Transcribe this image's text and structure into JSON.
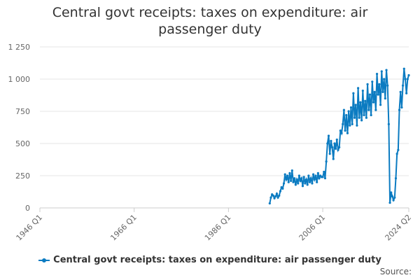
{
  "chart_data": {
    "type": "line",
    "title": "Central govt receipts: taxes on expenditure: air passenger duty",
    "source": "Source:",
    "x": [
      "1994 Q4",
      "1995 Q1",
      "1995 Q2",
      "1995 Q3",
      "1995 Q4",
      "1996 Q1",
      "1996 Q2",
      "1996 Q3",
      "1996 Q4",
      "1997 Q1",
      "1997 Q2",
      "1997 Q3",
      "1997 Q4",
      "1998 Q1",
      "1998 Q2",
      "1998 Q3",
      "1998 Q4",
      "1999 Q1",
      "1999 Q2",
      "1999 Q3",
      "1999 Q4",
      "2000 Q1",
      "2000 Q2",
      "2000 Q3",
      "2000 Q4",
      "2001 Q1",
      "2001 Q2",
      "2001 Q3",
      "2001 Q4",
      "2002 Q1",
      "2002 Q2",
      "2002 Q3",
      "2002 Q4",
      "2003 Q1",
      "2003 Q2",
      "2003 Q3",
      "2003 Q4",
      "2004 Q1",
      "2004 Q2",
      "2004 Q3",
      "2004 Q4",
      "2005 Q1",
      "2005 Q2",
      "2005 Q3",
      "2005 Q4",
      "2006 Q1",
      "2006 Q2",
      "2006 Q3",
      "2006 Q4",
      "2007 Q1",
      "2007 Q2",
      "2007 Q3",
      "2007 Q4",
      "2008 Q1",
      "2008 Q2",
      "2008 Q3",
      "2008 Q4",
      "2009 Q1",
      "2009 Q2",
      "2009 Q3",
      "2009 Q4",
      "2010 Q1",
      "2010 Q2",
      "2010 Q3",
      "2010 Q4",
      "2011 Q1",
      "2011 Q2",
      "2011 Q3",
      "2011 Q4",
      "2012 Q1",
      "2012 Q2",
      "2012 Q3",
      "2012 Q4",
      "2013 Q1",
      "2013 Q2",
      "2013 Q3",
      "2013 Q4",
      "2014 Q1",
      "2014 Q2",
      "2014 Q3",
      "2014 Q4",
      "2015 Q1",
      "2015 Q2",
      "2015 Q3",
      "2015 Q4",
      "2016 Q1",
      "2016 Q2",
      "2016 Q3",
      "2016 Q4",
      "2017 Q1",
      "2017 Q2",
      "2017 Q3",
      "2017 Q4",
      "2018 Q1",
      "2018 Q2",
      "2018 Q3",
      "2018 Q4",
      "2019 Q1",
      "2019 Q2",
      "2019 Q3",
      "2019 Q4",
      "2020 Q1",
      "2020 Q2",
      "2020 Q3",
      "2020 Q4",
      "2021 Q1",
      "2021 Q2",
      "2021 Q3",
      "2021 Q4",
      "2022 Q1",
      "2022 Q2",
      "2022 Q3",
      "2022 Q4",
      "2023 Q1",
      "2023 Q2",
      "2023 Q3",
      "2023 Q4",
      "2024 Q1",
      "2024 Q2"
    ],
    "series": [
      {
        "name": "Central govt receipts: taxes on expenditure: air passenger duty",
        "color": "#0b7bc1",
        "values": [
          35,
          80,
          105,
          95,
          75,
          90,
          110,
          80,
          95,
          130,
          160,
          150,
          190,
          260,
          220,
          250,
          200,
          270,
          210,
          290,
          200,
          230,
          180,
          220,
          190,
          250,
          210,
          230,
          170,
          240,
          190,
          220,
          180,
          250,
          200,
          230,
          190,
          260,
          220,
          250,
          200,
          270,
          230,
          250,
          240,
          240,
          280,
          230,
          360,
          500,
          560,
          420,
          520,
          470,
          380,
          500,
          460,
          530,
          450,
          470,
          600,
          580,
          650,
          760,
          600,
          720,
          580,
          750,
          640,
          780,
          650,
          890,
          700,
          800,
          640,
          930,
          700,
          820,
          680,
          910,
          720,
          830,
          700,
          960,
          760,
          880,
          720,
          980,
          820,
          900,
          760,
          1040,
          880,
          960,
          800,
          1060,
          900,
          1000,
          850,
          1070,
          950,
          650,
          40,
          120,
          90,
          60,
          80,
          230,
          420,
          450,
          760,
          900,
          780,
          950,
          1080,
          1000,
          890,
          1000,
          1030
        ]
      }
    ],
    "xlim": [
      "1946 Q1",
      "2024 Q2"
    ],
    "xticks": [
      "1946 Q1",
      "1966 Q1",
      "1986 Q1",
      "2006 Q1",
      "2024 Q2"
    ],
    "ylim": [
      0,
      1250
    ],
    "yticks": [
      0,
      250,
      500,
      750,
      {
        "value": 1000,
        "label": "1 000"
      },
      {
        "value": 1250,
        "label": "1 250"
      }
    ],
    "grid": true
  }
}
